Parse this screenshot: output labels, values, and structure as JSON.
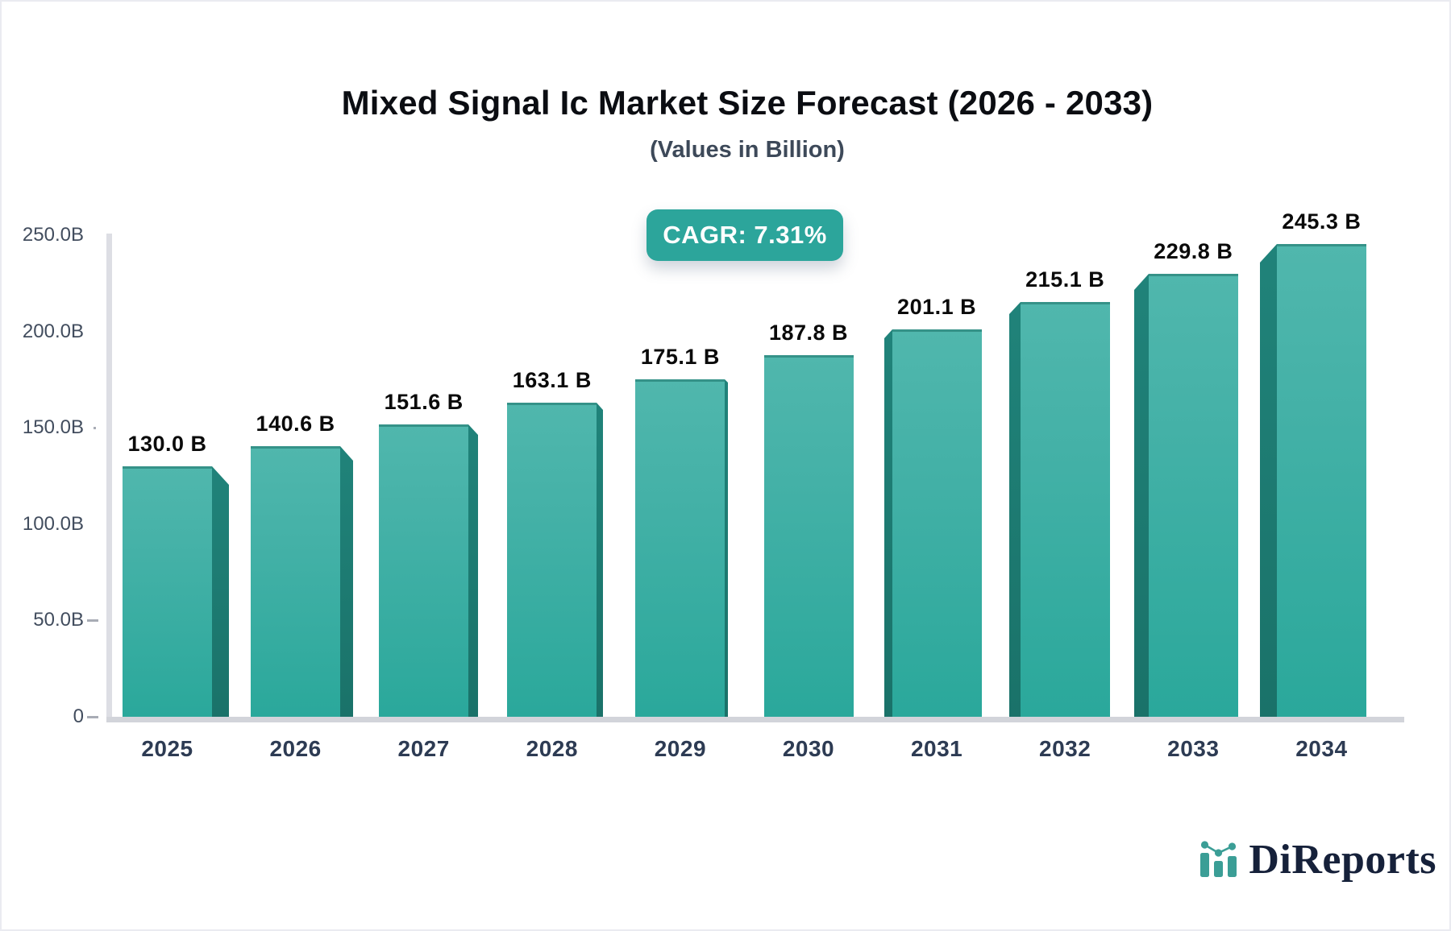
{
  "header": {
    "title": "Mixed Signal Ic Market Size Forecast (2026 - 2033)",
    "subtitle": "(Values in Billion)",
    "cagr_badge": "CAGR: 7.31%"
  },
  "brand": {
    "name": "DiReports",
    "icon": "bar-line-chart-icon"
  },
  "colors": {
    "accent_teal": "#2ca59b",
    "bar_face_top": "#50b7ad",
    "bar_face_bottom": "#2aa89b",
    "bar_side": "#1d7a70",
    "axis_line": "#dddee4",
    "baseline": "#d2d4da",
    "y_label_text": "#424d5e",
    "x_label_text": "#2d3b53",
    "title_text": "#0b0d12",
    "subtitle_text": "#3d4959",
    "badge_text": "#ffffff",
    "logo_navy": "#16213a",
    "logo_teal": "#3b9e96"
  },
  "chart_data": {
    "type": "bar",
    "effect": "3d",
    "title": "Mixed Signal Ic Market Size Forecast (2026 - 2033)",
    "subtitle": "(Values in Billion)",
    "annotation": "CAGR: 7.31%",
    "categories": [
      "2025",
      "2026",
      "2027",
      "2028",
      "2029",
      "2030",
      "2031",
      "2032",
      "2033",
      "2034"
    ],
    "values": [
      130.0,
      140.6,
      151.6,
      163.1,
      175.1,
      187.8,
      201.1,
      215.1,
      229.8,
      245.3
    ],
    "bar_labels": [
      "130.0 B",
      "140.6 B",
      "151.6 B",
      "163.1 B",
      "175.1 B",
      "187.8 B",
      "201.1 B",
      "215.1 B",
      "229.8 B",
      "245.3 B"
    ],
    "unit": "Billion",
    "xlabel": "",
    "ylabel": "",
    "ylim": [
      0,
      250
    ],
    "grid": false,
    "legend": null,
    "y_ticks": [
      {
        "label": "250.0B",
        "value": 250,
        "tick": "none"
      },
      {
        "label": "200.0B",
        "value": 200,
        "tick": "none"
      },
      {
        "label": "150.0B",
        "value": 150,
        "tick": "dot"
      },
      {
        "label": "100.0B",
        "value": 100,
        "tick": "none"
      },
      {
        "label": "50.0B",
        "value": 50,
        "tick": "dash"
      },
      {
        "label": "0",
        "value": 0,
        "tick": "dash"
      }
    ]
  }
}
